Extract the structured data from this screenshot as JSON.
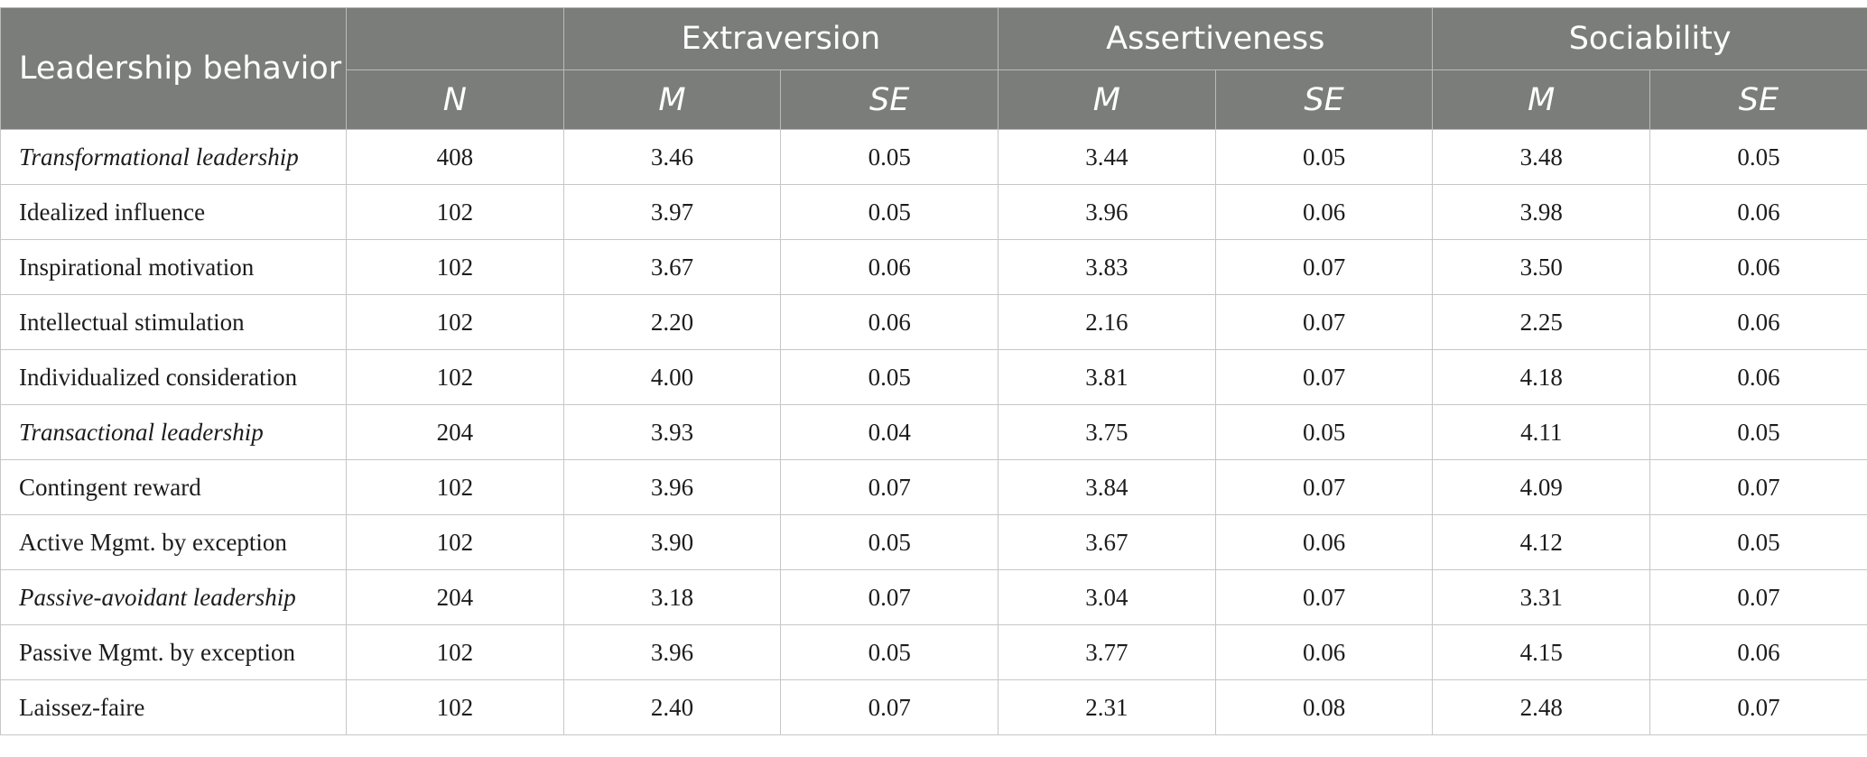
{
  "table": {
    "label_header": "Leadership behavior",
    "group_headers": [
      "Extraversion",
      "Assertiveness",
      "Sociability"
    ],
    "sub_headers": [
      "N",
      "M",
      "SE",
      "M",
      "SE",
      "M",
      "SE"
    ],
    "rows": [
      {
        "label": "Transformational leadership",
        "italic": true,
        "values": [
          "408",
          "3.46",
          "0.05",
          "3.44",
          "0.05",
          "3.48",
          "0.05"
        ]
      },
      {
        "label": "Idealized influence",
        "italic": false,
        "values": [
          "102",
          "3.97",
          "0.05",
          "3.96",
          "0.06",
          "3.98",
          "0.06"
        ]
      },
      {
        "label": "Inspirational motivation",
        "italic": false,
        "values": [
          "102",
          "3.67",
          "0.06",
          "3.83",
          "0.07",
          "3.50",
          "0.06"
        ]
      },
      {
        "label": "Intellectual stimulation",
        "italic": false,
        "values": [
          "102",
          "2.20",
          "0.06",
          "2.16",
          "0.07",
          "2.25",
          "0.06"
        ]
      },
      {
        "label": "Individualized consideration",
        "italic": false,
        "values": [
          "102",
          "4.00",
          "0.05",
          "3.81",
          "0.07",
          "4.18",
          "0.06"
        ]
      },
      {
        "label": "Transactional leadership",
        "italic": true,
        "values": [
          "204",
          "3.93",
          "0.04",
          "3.75",
          "0.05",
          "4.11",
          "0.05"
        ]
      },
      {
        "label": "Contingent reward",
        "italic": false,
        "values": [
          "102",
          "3.96",
          "0.07",
          "3.84",
          "0.07",
          "4.09",
          "0.07"
        ]
      },
      {
        "label": "Active Mgmt. by exception",
        "italic": false,
        "values": [
          "102",
          "3.90",
          "0.05",
          "3.67",
          "0.06",
          "4.12",
          "0.05"
        ]
      },
      {
        "label": "Passive-avoidant leadership",
        "italic": true,
        "values": [
          "204",
          "3.18",
          "0.07",
          "3.04",
          "0.07",
          "3.31",
          "0.07"
        ]
      },
      {
        "label": "Passive Mgmt. by exception",
        "italic": false,
        "values": [
          "102",
          "3.96",
          "0.05",
          "3.77",
          "0.06",
          "4.15",
          "0.06"
        ]
      },
      {
        "label": "Laissez-faire",
        "italic": false,
        "values": [
          "102",
          "2.40",
          "0.07",
          "2.31",
          "0.08",
          "2.48",
          "0.07"
        ]
      }
    ]
  }
}
